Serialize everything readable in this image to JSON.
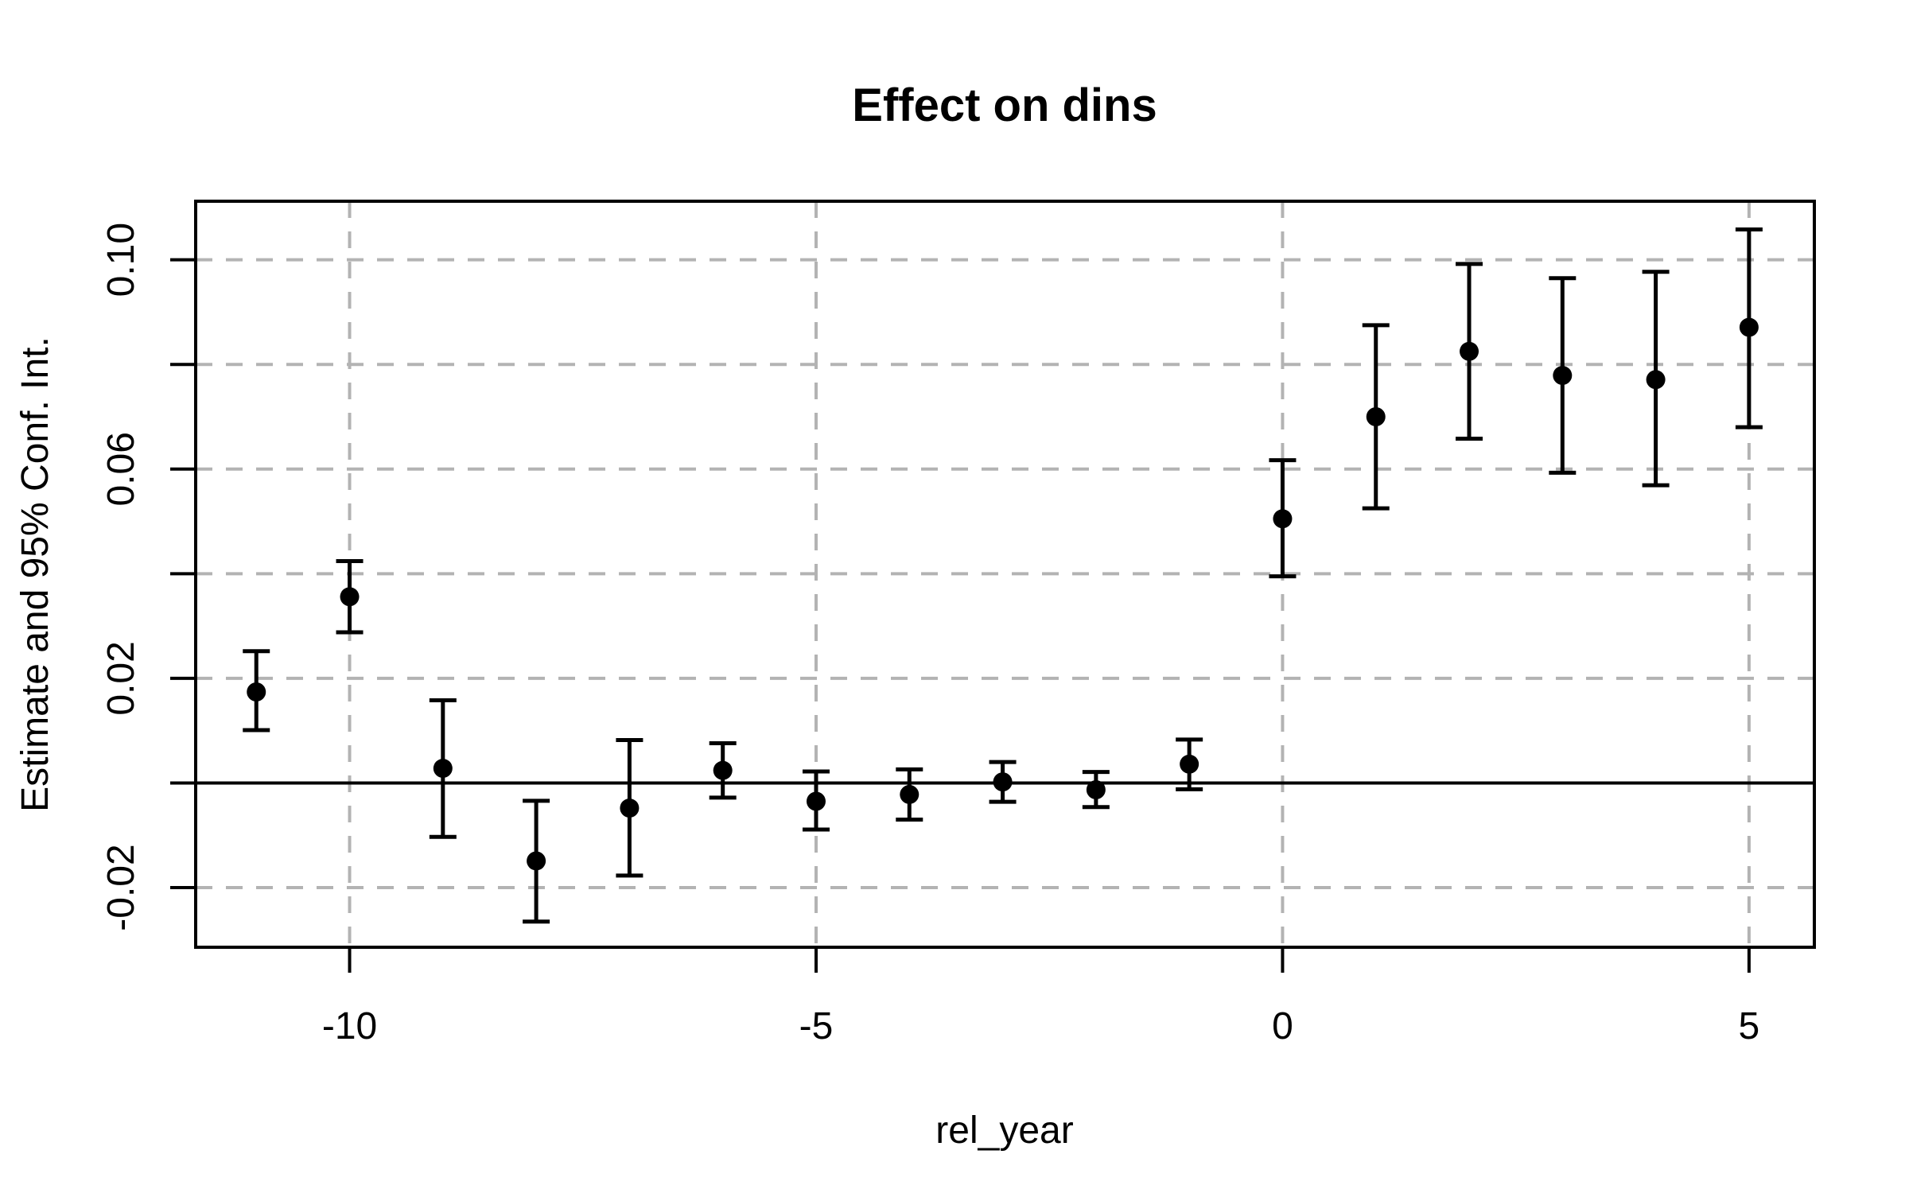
{
  "title": "Effect on dins",
  "chart_data": {
    "type": "scatter",
    "subtype": "point-estimates-with-95ci-errorbars",
    "title": "Effect on dins",
    "xlabel": "rel_year",
    "ylabel": "Estimate and 95% Conf. Int.",
    "xlim": [
      -11.65,
      5.7
    ],
    "ylim": [
      -0.0314,
      0.1112
    ],
    "grid": true,
    "grid_style": "dashed",
    "reference_line_y": 0,
    "legend": "none",
    "x_ticks": [
      {
        "value": -10,
        "label": "-10"
      },
      {
        "value": -5,
        "label": "-5"
      },
      {
        "value": 0,
        "label": "0"
      },
      {
        "value": 5,
        "label": "5"
      }
    ],
    "y_ticks": [
      {
        "value": 0.1,
        "label": "0.10"
      },
      {
        "value": 0.08,
        "label": ""
      },
      {
        "value": 0.06,
        "label": "0.06"
      },
      {
        "value": 0.04,
        "label": ""
      },
      {
        "value": 0.02,
        "label": "0.02"
      },
      {
        "value": 0.0,
        "label": ""
      },
      {
        "value": -0.02,
        "label": "-0.02"
      }
    ],
    "points": [
      {
        "x": -11,
        "estimate": 0.0174,
        "ci_low": 0.0101,
        "ci_high": 0.0252
      },
      {
        "x": -10,
        "estimate": 0.0356,
        "ci_low": 0.0288,
        "ci_high": 0.0424
      },
      {
        "x": -9,
        "estimate": 0.0028,
        "ci_low": -0.0103,
        "ci_high": 0.0158
      },
      {
        "x": -8,
        "estimate": -0.0149,
        "ci_low": -0.0265,
        "ci_high": -0.0034
      },
      {
        "x": -7,
        "estimate": -0.0048,
        "ci_low": -0.0177,
        "ci_high": 0.0082
      },
      {
        "x": -6,
        "estimate": 0.0024,
        "ci_low": -0.0028,
        "ci_high": 0.0076
      },
      {
        "x": -5,
        "estimate": -0.0035,
        "ci_low": -0.0089,
        "ci_high": 0.0022
      },
      {
        "x": -4,
        "estimate": -0.0022,
        "ci_low": -0.007,
        "ci_high": 0.0026
      },
      {
        "x": -3,
        "estimate": 0.0002,
        "ci_low": -0.0036,
        "ci_high": 0.004
      },
      {
        "x": -2,
        "estimate": -0.0013,
        "ci_low": -0.0046,
        "ci_high": 0.0021
      },
      {
        "x": -1,
        "estimate": 0.0036,
        "ci_low": -0.0012,
        "ci_high": 0.0083
      },
      {
        "x": 0,
        "estimate": 0.0505,
        "ci_low": 0.0395,
        "ci_high": 0.0617
      },
      {
        "x": 1,
        "estimate": 0.07,
        "ci_low": 0.0525,
        "ci_high": 0.0875
      },
      {
        "x": 2,
        "estimate": 0.0825,
        "ci_low": 0.0658,
        "ci_high": 0.0992
      },
      {
        "x": 3,
        "estimate": 0.0779,
        "ci_low": 0.0593,
        "ci_high": 0.0965
      },
      {
        "x": 4,
        "estimate": 0.0771,
        "ci_low": 0.0569,
        "ci_high": 0.0977
      },
      {
        "x": 5,
        "estimate": 0.0871,
        "ci_low": 0.068,
        "ci_high": 0.1058
      }
    ],
    "colors": {
      "point": "#000000",
      "error_bar": "#000000",
      "grid": "#b3b3b3",
      "axis": "#000000",
      "background": "#ffffff"
    }
  }
}
